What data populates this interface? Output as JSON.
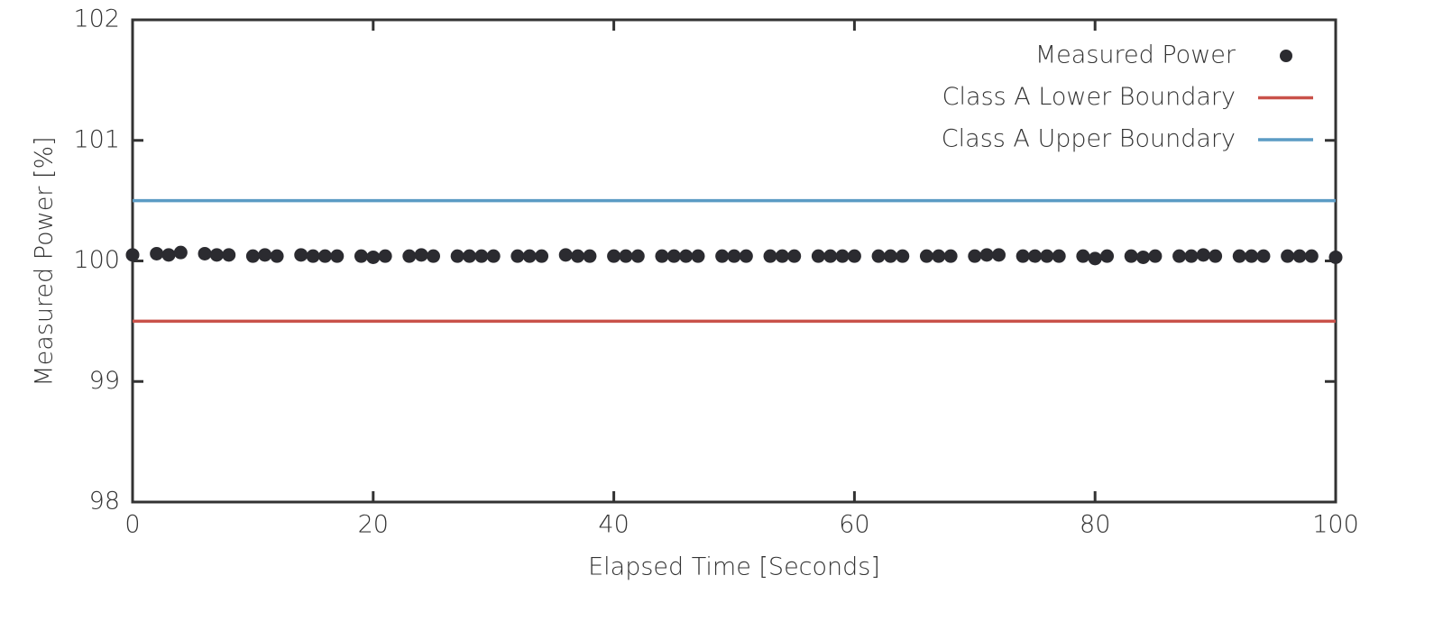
{
  "chart_data": {
    "type": "scatter",
    "x_label": "Elapsed Time [Seconds]",
    "y_label": "Measured Power [%]",
    "xlim": [
      0,
      100
    ],
    "xticks": [
      0,
      20,
      40,
      60,
      80,
      100
    ],
    "ylim": [
      98,
      102
    ],
    "yticks": [
      98,
      99,
      100,
      101,
      102
    ],
    "legend": "upper right",
    "series": [
      {
        "name": "Measured Power",
        "type": "scatter",
        "color": "#2b2b30",
        "x": [
          0,
          2,
          3,
          4,
          6,
          7,
          8,
          10,
          11,
          12,
          14,
          15,
          16,
          17,
          19,
          20,
          21,
          23,
          24,
          25,
          27,
          28,
          29,
          30,
          32,
          33,
          34,
          36,
          37,
          38,
          40,
          41,
          42,
          44,
          45,
          46,
          47,
          49,
          50,
          51,
          53,
          54,
          55,
          57,
          58,
          59,
          60,
          62,
          63,
          64,
          66,
          67,
          68,
          70,
          71,
          72,
          74,
          75,
          76,
          77,
          79,
          80,
          81,
          83,
          84,
          85,
          87,
          88,
          89,
          90,
          92,
          93,
          94,
          96,
          97,
          98,
          100
        ],
        "values": [
          100.05,
          100.06,
          100.05,
          100.07,
          100.06,
          100.05,
          100.05,
          100.04,
          100.05,
          100.04,
          100.05,
          100.04,
          100.04,
          100.04,
          100.04,
          100.03,
          100.04,
          100.04,
          100.05,
          100.04,
          100.04,
          100.04,
          100.04,
          100.04,
          100.04,
          100.04,
          100.04,
          100.05,
          100.04,
          100.04,
          100.04,
          100.04,
          100.04,
          100.04,
          100.04,
          100.04,
          100.04,
          100.04,
          100.04,
          100.04,
          100.04,
          100.04,
          100.04,
          100.04,
          100.04,
          100.04,
          100.04,
          100.04,
          100.04,
          100.04,
          100.04,
          100.04,
          100.04,
          100.04,
          100.05,
          100.05,
          100.04,
          100.04,
          100.04,
          100.04,
          100.04,
          100.02,
          100.04,
          100.04,
          100.03,
          100.04,
          100.04,
          100.04,
          100.05,
          100.04,
          100.04,
          100.04,
          100.04,
          100.04,
          100.04,
          100.04,
          100.03
        ]
      },
      {
        "name": "Class A Lower Boundary",
        "type": "line",
        "color": "#c9524a",
        "x": [
          0,
          100
        ],
        "values": [
          99.5,
          99.5
        ]
      },
      {
        "name": "Class A Upper Boundary",
        "type": "line",
        "color": "#5b9bc4",
        "x": [
          0,
          100
        ],
        "values": [
          100.5,
          100.5
        ]
      }
    ]
  }
}
